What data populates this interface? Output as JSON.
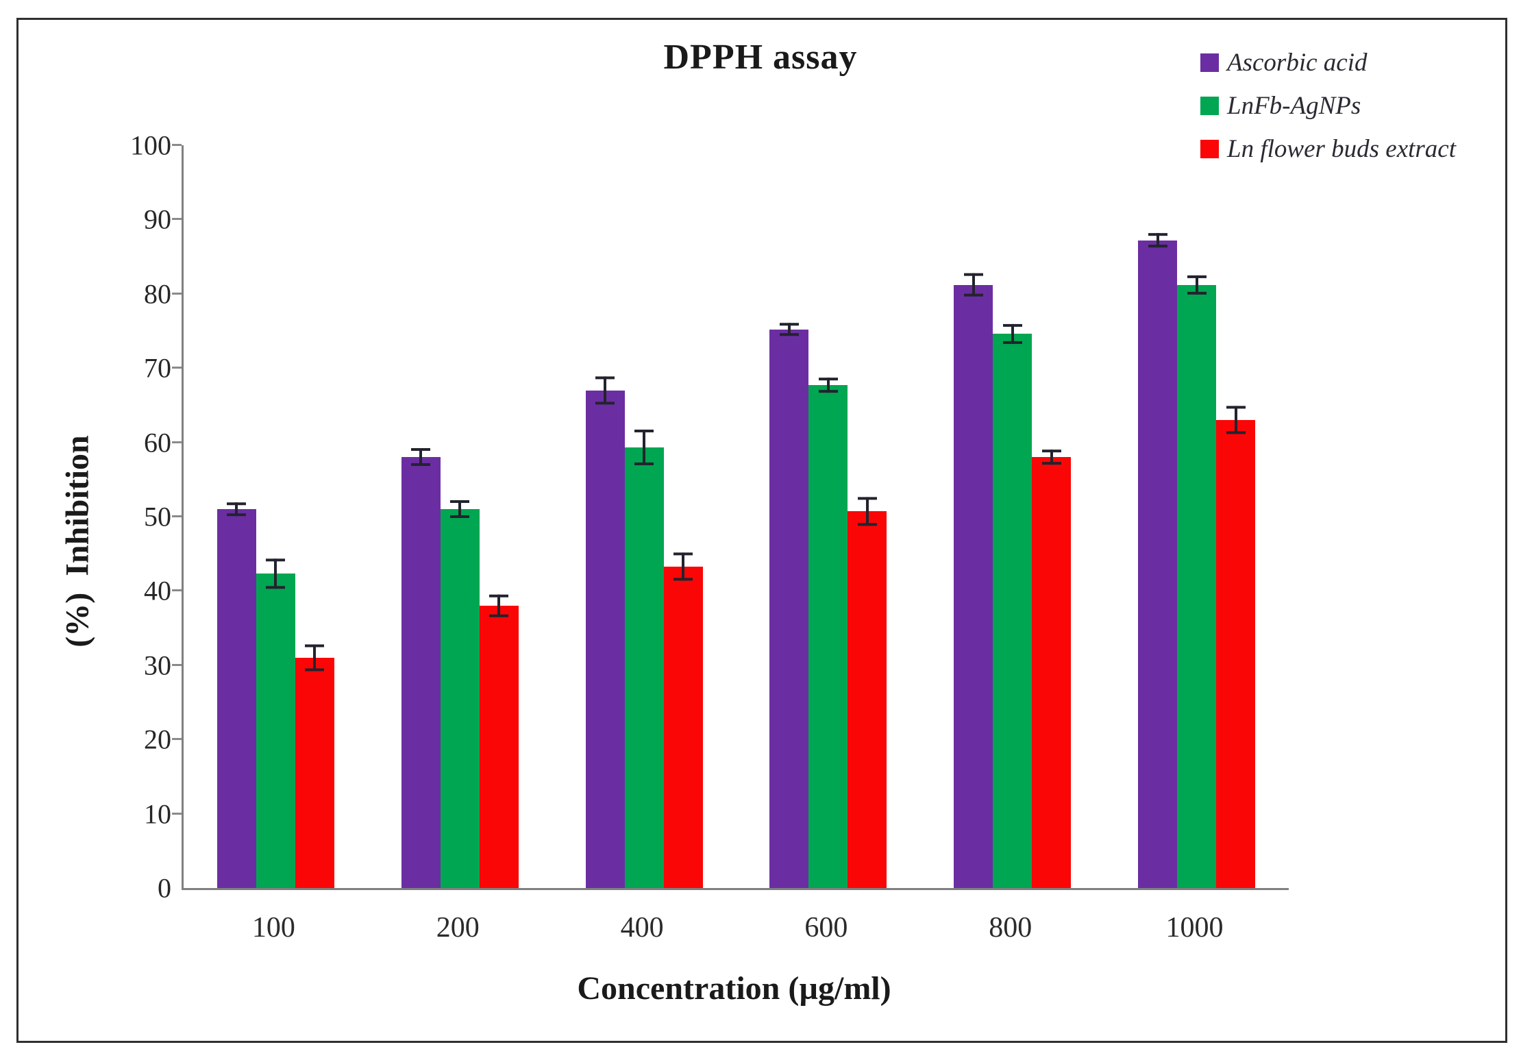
{
  "figure": {
    "title": "DPPH assay",
    "xlabel": "Concentration (µg/ml)",
    "ylabel": "(%)  Inhibition"
  },
  "chart_data": {
    "type": "bar",
    "title": "DPPH assay",
    "xlabel": "Concentration (µg/ml)",
    "ylabel": "(%) Inhibition",
    "categories": [
      "100",
      "200",
      "400",
      "600",
      "800",
      "1000"
    ],
    "series": [
      {
        "name": "Ascorbic acid",
        "color": "#6B2EA2",
        "values": [
          51,
          58,
          67,
          75.2,
          81.2,
          87.2
        ],
        "errors": [
          0.9,
          1.2,
          1.9,
          0.9,
          1.6,
          1.0
        ]
      },
      {
        "name": "LnFb-AgNPs",
        "color": "#00A651",
        "values": [
          42.3,
          51,
          59.3,
          67.7,
          74.6,
          81.2
        ],
        "errors": [
          2.0,
          1.2,
          2.4,
          1.0,
          1.3,
          1.3
        ]
      },
      {
        "name": "Ln flower buds extract",
        "color": "#FB0606",
        "values": [
          31,
          38,
          43.3,
          50.7,
          58,
          63
        ],
        "errors": [
          1.8,
          1.5,
          1.9,
          1.9,
          1.0,
          1.9
        ]
      }
    ],
    "ylim": [
      0,
      100
    ],
    "ytick_step": 10,
    "grid": false,
    "legend_position": "top-right",
    "error_bars": true
  }
}
